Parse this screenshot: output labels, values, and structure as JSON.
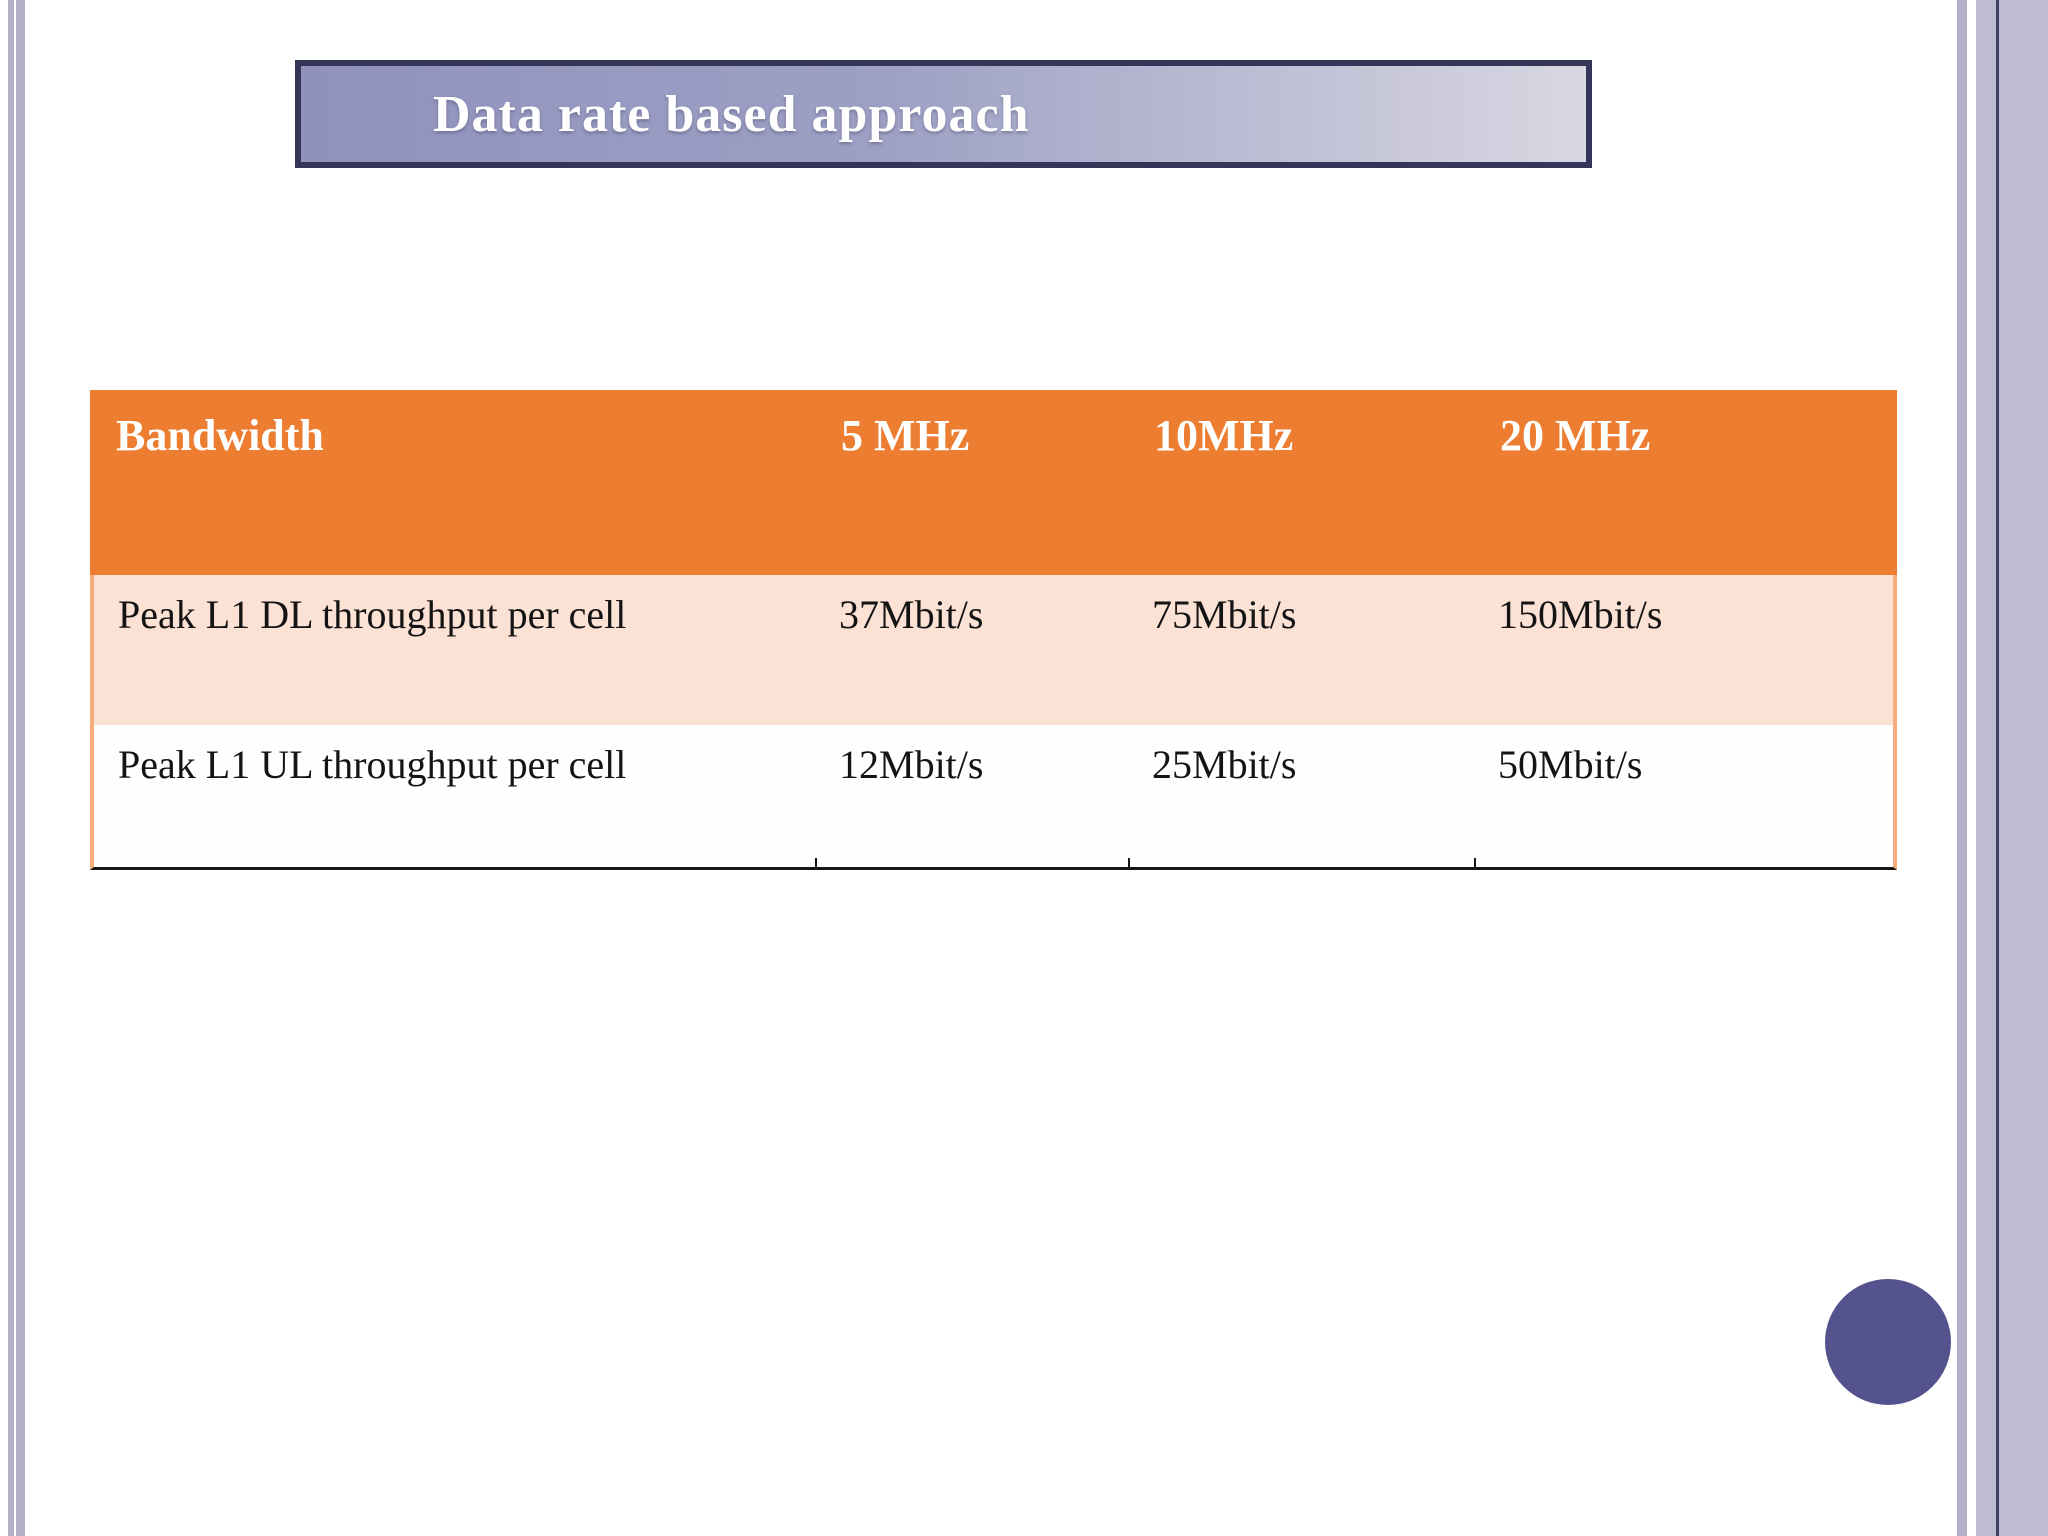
{
  "slide": {
    "title": "Data rate based approach"
  },
  "table": {
    "columns": [
      "Bandwidth",
      "5 MHz",
      "10MHz",
      "20 MHz"
    ],
    "rows": [
      {
        "label": "Peak L1 DL throughput per cell",
        "values": [
          "37Mbit/s",
          "75Mbit/s",
          "150Mbit/s"
        ]
      },
      {
        "label": "Peak L1 UL throughput per cell",
        "values": [
          "12Mbit/s",
          "25Mbit/s",
          "50Mbit/s"
        ]
      }
    ]
  },
  "colors": {
    "header_bg": "#ED7D31",
    "row_alt_bg": "#FBE2D5",
    "row_border": "#f5ad7d",
    "title_border": "#343559",
    "title_gradient_start": "#9092bd",
    "title_gradient_end": "#d8d7e2",
    "stripe_color": "#b2b0c7",
    "stripe_wide_color": "#bfbdd1",
    "stripe_line_color": "#403f69",
    "circle_color": "#55538e"
  }
}
